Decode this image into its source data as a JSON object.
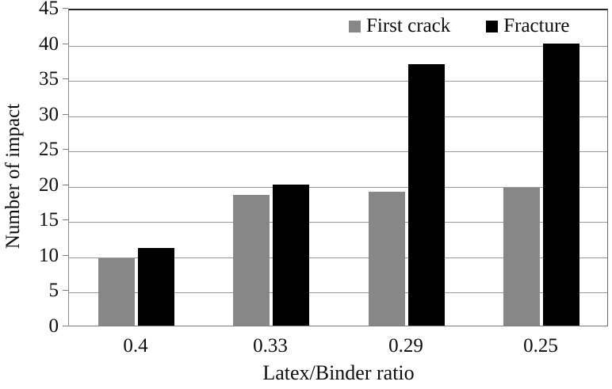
{
  "chart_data": {
    "type": "bar",
    "title": "",
    "categories": [
      "0.4",
      "0.33",
      "0.29",
      "0.25"
    ],
    "series": [
      {
        "name": "First crack",
        "color": "#878787",
        "values": [
          9.5,
          18.5,
          19,
          19.5
        ]
      },
      {
        "name": "Fracture",
        "color": "#000000",
        "values": [
          11,
          20,
          37,
          40
        ]
      }
    ],
    "xlabel": "Latex/Binder ratio",
    "ylabel": "Number of impact",
    "ylim": [
      0,
      45
    ],
    "ytick_step": 5,
    "yticks": [
      0,
      5,
      10,
      15,
      20,
      25,
      30,
      35,
      40,
      45
    ],
    "grid": true,
    "legend_position": "top-inside-right",
    "colors": {
      "gridline": "#9a9a9a",
      "axis": "#7d7d7d",
      "text": "#0d0d0d"
    }
  }
}
